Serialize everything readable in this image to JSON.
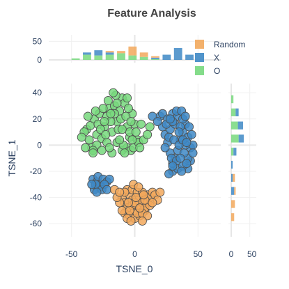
{
  "chart_data": {
    "type": "scatter",
    "title": "Feature Analysis",
    "xlabel": "TSNE_0",
    "ylabel": "TSNE_1",
    "xlim": [
      -68,
      68
    ],
    "ylim": [
      -70,
      47
    ],
    "x_ticks": [
      -50,
      0,
      50
    ],
    "y_ticks": [
      40,
      20,
      0,
      -20,
      -40,
      -60
    ],
    "grid": true,
    "legend_position": "top-right",
    "colors": {
      "Random": "#F2A85C",
      "X": "#3E88C5",
      "O": "#77D87D"
    },
    "series": [
      {
        "name": "O",
        "points": [
          [
            -38,
            12
          ],
          [
            -35,
            15
          ],
          [
            -32,
            20
          ],
          [
            -30,
            8
          ],
          [
            -28,
            24
          ],
          [
            -26,
            5
          ],
          [
            -24,
            14
          ],
          [
            -22,
            22
          ],
          [
            -20,
            28
          ],
          [
            -18,
            10
          ],
          [
            -16,
            30
          ],
          [
            -14,
            18
          ],
          [
            -12,
            26
          ],
          [
            -10,
            36
          ],
          [
            -8,
            32
          ],
          [
            -6,
            14
          ],
          [
            -4,
            6
          ],
          [
            -2,
            24
          ],
          [
            0,
            16
          ],
          [
            2,
            4
          ],
          [
            -36,
            4
          ],
          [
            -34,
            -2
          ],
          [
            -30,
            0
          ],
          [
            -26,
            -4
          ],
          [
            -22,
            2
          ],
          [
            -18,
            -6
          ],
          [
            -14,
            2
          ],
          [
            -10,
            -4
          ],
          [
            -6,
            -2
          ],
          [
            -4,
            10
          ],
          [
            -40,
            10
          ],
          [
            -42,
            6
          ],
          [
            -37,
            22
          ],
          [
            -33,
            -4
          ],
          [
            -29,
            16
          ],
          [
            -25,
            28
          ],
          [
            -21,
            34
          ],
          [
            -19,
            18
          ],
          [
            -15,
            38
          ],
          [
            -13,
            12
          ],
          [
            -11,
            20
          ],
          [
            -9,
            0
          ],
          [
            -7,
            22
          ],
          [
            -5,
            28
          ],
          [
            -3,
            -4
          ],
          [
            -1,
            -2
          ],
          [
            1,
            10
          ],
          [
            3,
            2
          ],
          [
            5,
            16
          ],
          [
            -17,
            40
          ],
          [
            -27,
            12
          ],
          [
            -23,
            8
          ],
          [
            -31,
            26
          ],
          [
            -12,
            4
          ],
          [
            -8,
            -6
          ],
          [
            4,
            -2
          ],
          [
            7,
            4
          ],
          [
            -2,
            4
          ],
          [
            -16,
            24
          ],
          [
            -20,
            -2
          ],
          [
            12,
            14
          ],
          [
            10,
            8
          ],
          [
            -33,
            -6
          ],
          [
            -39,
            -2
          ],
          [
            -24,
            18
          ],
          [
            -6,
            36
          ],
          [
            -14,
            32
          ],
          [
            -10,
            12
          ],
          [
            -3,
            18
          ],
          [
            -19,
            24
          ]
        ]
      },
      {
        "name": "X",
        "points": [
          [
            20,
            22
          ],
          [
            22,
            14
          ],
          [
            24,
            8
          ],
          [
            26,
            2
          ],
          [
            28,
            -6
          ],
          [
            30,
            -14
          ],
          [
            32,
            -10
          ],
          [
            34,
            -4
          ],
          [
            36,
            4
          ],
          [
            38,
            10
          ],
          [
            40,
            16
          ],
          [
            42,
            -18
          ],
          [
            44,
            -2
          ],
          [
            22,
            24
          ],
          [
            26,
            20
          ],
          [
            30,
            24
          ],
          [
            34,
            22
          ],
          [
            38,
            20
          ],
          [
            42,
            6
          ],
          [
            46,
            0
          ],
          [
            28,
            12
          ],
          [
            32,
            16
          ],
          [
            36,
            14
          ],
          [
            40,
            0
          ],
          [
            44,
            -12
          ],
          [
            30,
            -20
          ],
          [
            34,
            -18
          ],
          [
            38,
            -16
          ],
          [
            42,
            -10
          ],
          [
            24,
            -2
          ],
          [
            27,
            6
          ],
          [
            31,
            4
          ],
          [
            35,
            10
          ],
          [
            39,
            -6
          ],
          [
            43,
            14
          ],
          [
            45,
            8
          ],
          [
            29,
            -10
          ],
          [
            33,
            -12
          ],
          [
            37,
            -20
          ],
          [
            41,
            -14
          ],
          [
            25,
            16
          ],
          [
            33,
            26
          ],
          [
            37,
            26
          ],
          [
            40,
            22
          ],
          [
            30,
            18
          ],
          [
            35,
            0
          ],
          [
            38,
            4
          ],
          [
            28,
            20
          ],
          [
            36,
            -10
          ],
          [
            41,
            2
          ],
          [
            -33,
            -26
          ],
          [
            -30,
            -28
          ],
          [
            -28,
            -32
          ],
          [
            -32,
            -34
          ],
          [
            -29,
            -24
          ],
          [
            -27,
            -30
          ],
          [
            -25,
            -26
          ],
          [
            -31,
            -30
          ],
          [
            -34,
            -30
          ],
          [
            -26,
            -34
          ],
          [
            -22,
            -28
          ],
          [
            -20,
            -26
          ],
          [
            -24,
            -30
          ],
          [
            -30,
            -36
          ],
          [
            -22,
            -34
          ],
          [
            14,
            22
          ],
          [
            18,
            18
          ],
          [
            30,
            -16
          ],
          [
            27,
            -22
          ],
          [
            46,
            -6
          ]
        ]
      },
      {
        "name": "Random",
        "points": [
          [
            -10,
            -40
          ],
          [
            -8,
            -44
          ],
          [
            -6,
            -48
          ],
          [
            -4,
            -38
          ],
          [
            -2,
            -42
          ],
          [
            0,
            -50
          ],
          [
            2,
            -46
          ],
          [
            4,
            -40
          ],
          [
            6,
            -44
          ],
          [
            8,
            -50
          ],
          [
            10,
            -38
          ],
          [
            -6,
            -34
          ],
          [
            -2,
            -34
          ],
          [
            2,
            -36
          ],
          [
            6,
            -36
          ],
          [
            10,
            -44
          ],
          [
            12,
            -40
          ],
          [
            14,
            -36
          ],
          [
            -8,
            -52
          ],
          [
            -4,
            -54
          ],
          [
            0,
            -56
          ],
          [
            4,
            -54
          ],
          [
            8,
            -48
          ],
          [
            16,
            -38
          ],
          [
            -12,
            -44
          ],
          [
            -14,
            -40
          ],
          [
            -10,
            -50
          ],
          [
            -6,
            -56
          ],
          [
            2,
            -52
          ],
          [
            6,
            -52
          ],
          [
            -2,
            -46
          ],
          [
            -4,
            -50
          ],
          [
            12,
            -46
          ],
          [
            18,
            -42
          ],
          [
            20,
            -36
          ],
          [
            -16,
            -34
          ],
          [
            -8,
            -36
          ],
          [
            0,
            -44
          ],
          [
            4,
            -48
          ],
          [
            -1,
            -30
          ],
          [
            3,
            -32
          ],
          [
            8,
            -42
          ],
          [
            -12,
            -36
          ],
          [
            14,
            -44
          ],
          [
            10,
            -54
          ],
          [
            -3,
            -58
          ],
          [
            6,
            -58
          ],
          [
            -5,
            -44
          ],
          [
            1,
            -40
          ],
          [
            7,
            -38
          ]
        ]
      }
    ],
    "marginal_x": {
      "ylim": [
        0,
        60
      ],
      "y_ticks": [
        0,
        50
      ],
      "bins": [
        {
          "x0": -50,
          "x1": -43.5,
          "Random": 0,
          "X": 0,
          "O": 4
        },
        {
          "x0": -41,
          "x1": -34.5,
          "Random": 0,
          "X": 6,
          "O": 14
        },
        {
          "x0": -32,
          "x1": -25.5,
          "Random": 0,
          "X": 14,
          "O": 12
        },
        {
          "x0": -23,
          "x1": -16.5,
          "Random": 4,
          "X": 6,
          "O": 14
        },
        {
          "x0": -14,
          "x1": -7.5,
          "Random": 6,
          "X": 0,
          "O": 18
        },
        {
          "x0": -5,
          "x1": 1.5,
          "Random": 24,
          "X": 0,
          "O": 12
        },
        {
          "x0": 4,
          "x1": 10.5,
          "Random": 12,
          "X": 0,
          "O": 8
        },
        {
          "x0": 13,
          "x1": 19.5,
          "Random": 4,
          "X": 4,
          "O": 2
        },
        {
          "x0": 22,
          "x1": 28.5,
          "Random": 0,
          "X": 14,
          "O": 0
        },
        {
          "x0": 31,
          "x1": 37.5,
          "Random": 0,
          "X": 32,
          "O": 0
        },
        {
          "x0": 40,
          "x1": 46.5,
          "Random": 0,
          "X": 14,
          "O": 0
        }
      ]
    },
    "marginal_y": {
      "xlim": [
        0,
        60
      ],
      "x_ticks": [
        0,
        50
      ],
      "bins": [
        {
          "y0": 32,
          "y1": 38,
          "Random": 0,
          "X": 0,
          "O": 6
        },
        {
          "y0": 22,
          "y1": 28,
          "Random": 0,
          "X": 8,
          "O": 12
        },
        {
          "y0": 12,
          "y1": 18,
          "Random": 0,
          "X": 14,
          "O": 18
        },
        {
          "y0": 2,
          "y1": 8,
          "Random": 0,
          "X": 14,
          "O": 20
        },
        {
          "y0": -8,
          "y1": -2,
          "Random": 0,
          "X": 8,
          "O": 6
        },
        {
          "y0": -18,
          "y1": -12,
          "Random": 0,
          "X": 4,
          "O": 0
        },
        {
          "y0": -28,
          "y1": -22,
          "Random": 6,
          "X": 4,
          "O": 0
        },
        {
          "y0": -38,
          "y1": -32,
          "Random": 4,
          "X": 8,
          "O": 0
        },
        {
          "y0": -48,
          "y1": -42,
          "Random": 10,
          "X": 0,
          "O": 0
        },
        {
          "y0": -58,
          "y1": -52,
          "Random": 8,
          "X": 0,
          "O": 0
        }
      ]
    }
  },
  "legend": [
    {
      "label": "Random",
      "color": "#F2A85C"
    },
    {
      "label": "X",
      "color": "#3E88C5"
    },
    {
      "label": "O",
      "color": "#77D87D"
    }
  ]
}
